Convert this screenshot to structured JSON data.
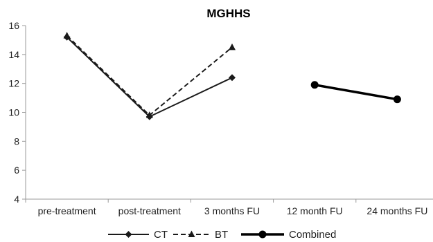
{
  "chart_data": {
    "type": "line",
    "title": "MGHHS",
    "xlabel": "",
    "ylabel": "",
    "categories": [
      "pre-treatment",
      "post-treatment",
      "3 months FU",
      "12 month FU",
      "24 months FU"
    ],
    "ylim": [
      4,
      16
    ],
    "yticks": [
      4,
      6,
      8,
      10,
      12,
      14,
      16
    ],
    "grid": false,
    "legend": "bottom",
    "series": [
      {
        "name": "CT",
        "values": [
          15.2,
          9.7,
          12.4,
          null,
          null
        ],
        "marker": "diamond",
        "dash": "solid",
        "color": "#1a1a1a"
      },
      {
        "name": "BT",
        "values": [
          15.3,
          9.8,
          14.5,
          null,
          null
        ],
        "marker": "triangle",
        "dash": "dashed",
        "color": "#1a1a1a"
      },
      {
        "name": "Combined",
        "values": [
          null,
          null,
          null,
          11.9,
          10.9
        ],
        "marker": "circle",
        "dash": "solid-thick",
        "color": "#000000"
      }
    ]
  }
}
